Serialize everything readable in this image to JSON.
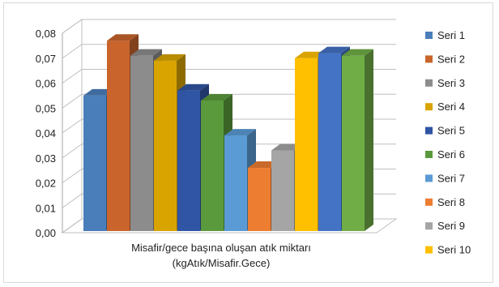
{
  "chart_data": {
    "type": "bar",
    "categories": [
      "Misafir/gece başına oluşan atık miktarı (kgAtık/Misafir.Gece)"
    ],
    "xlabel_lines": [
      "Misafir/gece başına oluşan atık miktarı",
      "(kgAtık/Misafir.Gece)"
    ],
    "ylabel": "",
    "title": "",
    "ylim": [
      0,
      0.08
    ],
    "yticks": [
      "0,00",
      "0,01",
      "0,02",
      "0,03",
      "0,04",
      "0,05",
      "0,06",
      "0,07",
      "0,08"
    ],
    "grid": true,
    "style": "3d-clustered-column",
    "legend_position": "right",
    "series": [
      {
        "name": "Seri 1",
        "values": [
          0.055
        ],
        "color": "#4a7ebb"
      },
      {
        "name": "Seri 2",
        "values": [
          0.077
        ],
        "color": "#c8642c"
      },
      {
        "name": "Seri 3",
        "values": [
          0.071
        ],
        "color": "#8c8c8c"
      },
      {
        "name": "Seri 4",
        "values": [
          0.069
        ],
        "color": "#d9a400"
      },
      {
        "name": "Seri 5",
        "values": [
          0.057
        ],
        "color": "#2f55a4"
      },
      {
        "name": "Seri 6",
        "values": [
          0.053
        ],
        "color": "#5a9a3c"
      },
      {
        "name": "Seri 7",
        "values": [
          0.039
        ],
        "color": "#5b9bd5"
      },
      {
        "name": "Seri 8",
        "values": [
          0.026
        ],
        "color": "#ed7d31"
      },
      {
        "name": "Seri 9",
        "values": [
          0.033
        ],
        "color": "#a5a5a5"
      },
      {
        "name": "Seri 10",
        "values": [
          0.07
        ],
        "color": "#ffc000"
      },
      {
        "name": "",
        "values": [
          0.072
        ],
        "color": "#4472c4"
      },
      {
        "name": "",
        "values": [
          0.071
        ],
        "color": "#70ad47"
      }
    ]
  }
}
